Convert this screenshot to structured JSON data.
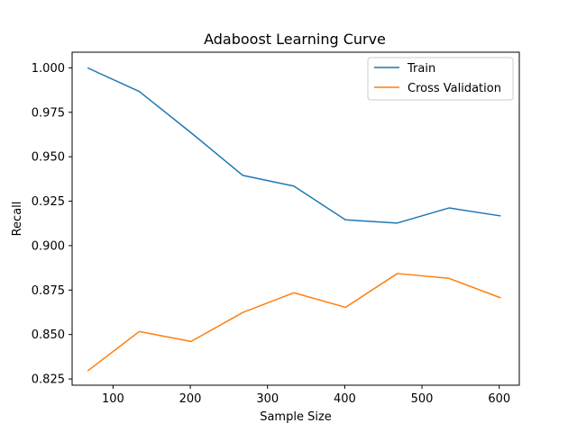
{
  "chart_data": {
    "type": "line",
    "title": "Adaboost Learning Curve",
    "xlabel": "Sample Size",
    "ylabel": "Recall",
    "xlim": [
      47,
      626
    ],
    "ylim": [
      0.8215,
      1.0088
    ],
    "xticks": [
      100,
      200,
      300,
      400,
      500,
      600
    ],
    "yticks": [
      0.825,
      0.85,
      0.875,
      0.9,
      0.925,
      0.95,
      0.975,
      1.0
    ],
    "xtick_labels": [
      "100",
      "200",
      "300",
      "400",
      "500",
      "600"
    ],
    "ytick_labels": [
      "0.825",
      "0.850",
      "0.875",
      "0.900",
      "0.925",
      "0.950",
      "0.975",
      "1.000"
    ],
    "grid": false,
    "legend": "top-right",
    "x": [
      67,
      134,
      201,
      268,
      334,
      401,
      468,
      535,
      602
    ],
    "series": [
      {
        "name": "Train",
        "color": "#1f77b4",
        "values": [
          1.0,
          0.9867,
          0.9635,
          0.9395,
          0.9335,
          0.9145,
          0.9127,
          0.9212,
          0.9167
        ]
      },
      {
        "name": "Cross Validation",
        "color": "#ff7f0e",
        "values": [
          0.8295,
          0.8517,
          0.8461,
          0.8624,
          0.8735,
          0.8653,
          0.8843,
          0.8816,
          0.8706
        ]
      }
    ]
  }
}
